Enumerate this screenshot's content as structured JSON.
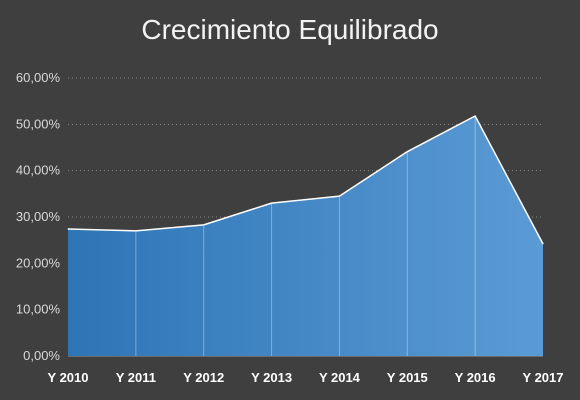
{
  "chart_data": {
    "type": "area",
    "title": "Crecimiento Equilibrado",
    "categories": [
      "Y 2010",
      "Y 2011",
      "Y 2012",
      "Y 2013",
      "Y 2014",
      "Y 2015",
      "Y 2016",
      "Y 2017"
    ],
    "series": [
      {
        "values": [
          0.274,
          0.27,
          0.283,
          0.33,
          0.345,
          0.441,
          0.518,
          0.242
        ]
      }
    ],
    "y_ticks": [
      "0,00%",
      "10,00%",
      "20,00%",
      "30,00%",
      "40,00%",
      "50,00%",
      "60,00%"
    ],
    "ylim": [
      0,
      0.6
    ],
    "grid": true,
    "legend": "none",
    "colors": {
      "background": "#3f3f3f",
      "area_start": "#2e75b6",
      "area_end": "#5b9bd5",
      "outline": "#ffffff"
    }
  }
}
